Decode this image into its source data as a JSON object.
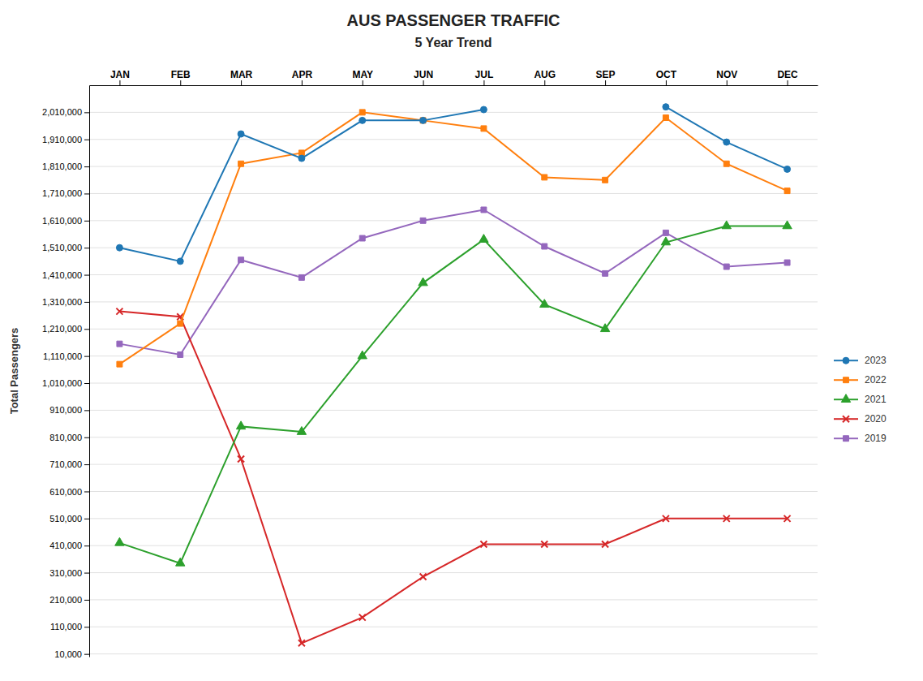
{
  "chart_data": {
    "type": "line",
    "title": "AUS PASSENGER TRAFFIC",
    "subtitle": "5 Year Trend",
    "ylabel": "Total Passengers",
    "categories": [
      "JAN",
      "FEB",
      "MAR",
      "APR",
      "MAY",
      "JUN",
      "JUL",
      "AUG",
      "SEP",
      "OCT",
      "NOV",
      "DEC"
    ],
    "series": [
      {
        "name": "2023",
        "marker": "circle",
        "values": [
          1510000,
          1460000,
          1930000,
          1840000,
          1980000,
          1980000,
          2020000,
          null,
          null,
          2030000,
          1900000,
          1800000
        ]
      },
      {
        "name": "2022",
        "marker": "square",
        "values": [
          1080000,
          1230000,
          1820000,
          1860000,
          2010000,
          1980000,
          1950000,
          1770000,
          1760000,
          1990000,
          1820000,
          1720000
        ]
      },
      {
        "name": "2021",
        "marker": "triangle",
        "values": [
          420000,
          345000,
          850000,
          830000,
          1110000,
          1380000,
          1540000,
          1300000,
          1210000,
          1530000,
          1590000,
          1590000
        ]
      },
      {
        "name": "2020",
        "marker": "x",
        "values": [
          1275000,
          1255000,
          730000,
          50000,
          145000,
          295000,
          415000,
          415000,
          415000,
          510000,
          510000,
          510000
        ]
      },
      {
        "name": "2019",
        "marker": "square",
        "values": [
          1155000,
          1115000,
          1465000,
          1400000,
          1545000,
          1610000,
          1650000,
          1515000,
          1415000,
          1565000,
          1440000,
          1455000
        ]
      }
    ],
    "ylim": [
      0,
      2110000
    ],
    "yticks": [
      {
        "value": 10000,
        "label": "10,000"
      },
      {
        "value": 110000,
        "label": "110,000"
      },
      {
        "value": 210000,
        "label": "210,000"
      },
      {
        "value": 310000,
        "label": "310,000"
      },
      {
        "value": 410000,
        "label": "410,000"
      },
      {
        "value": 510000,
        "label": "510,000"
      },
      {
        "value": 610000,
        "label": "610,000"
      },
      {
        "value": 710000,
        "label": "710,000"
      },
      {
        "value": 810000,
        "label": "810,000"
      },
      {
        "value": 910000,
        "label": "910,000"
      },
      {
        "value": 1010000,
        "label": "1,010,000"
      },
      {
        "value": 1110000,
        "label": "1,110,000"
      },
      {
        "value": 1210000,
        "label": "1,210,000"
      },
      {
        "value": 1310000,
        "label": "1,310,000"
      },
      {
        "value": 1410000,
        "label": "1,410,000"
      },
      {
        "value": 1510000,
        "label": "1,510,000"
      },
      {
        "value": 1610000,
        "label": "1,610,000"
      },
      {
        "value": 1710000,
        "label": "1,710,000"
      },
      {
        "value": 1810000,
        "label": "1,810,000"
      },
      {
        "value": 1910000,
        "label": "1,910,000"
      },
      {
        "value": 2010000,
        "label": "2,010,000"
      }
    ],
    "grid": true,
    "legend": "right"
  }
}
